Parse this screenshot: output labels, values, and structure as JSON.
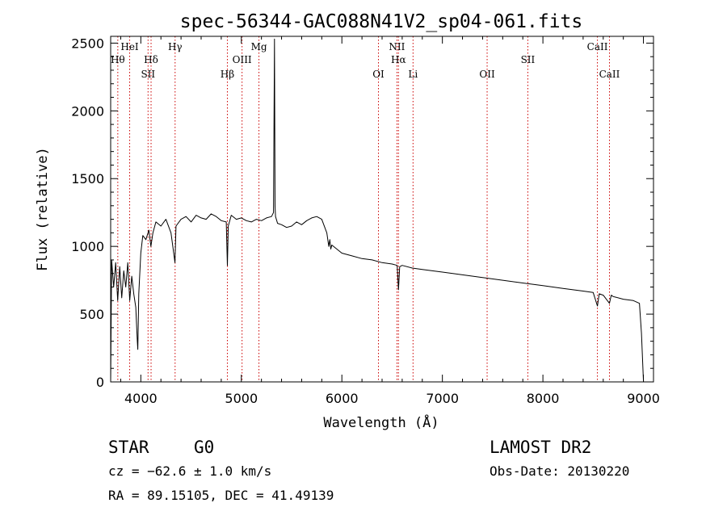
{
  "chart_data": {
    "type": "line",
    "title": "spec-56344-GAC088N41V2_sp04-061.fits",
    "xlabel": "Wavelength (Å)",
    "ylabel": "Flux (relative)",
    "xlim": [
      3700,
      9100
    ],
    "ylim": [
      0,
      2550
    ],
    "x_ticks": [
      4000,
      5000,
      6000,
      7000,
      8000,
      9000
    ],
    "x_tick_labels": [
      "4000",
      "5000",
      "6000",
      "7000",
      "8000",
      "9000"
    ],
    "y_ticks": [
      0,
      500,
      1000,
      1500,
      2000,
      2500
    ],
    "y_tick_labels": [
      "0",
      "500",
      "1000",
      "1500",
      "2000",
      "2500"
    ],
    "grid": false,
    "series": [
      {
        "x": [
          3700,
          3710,
          3730,
          3750,
          3770,
          3790,
          3810,
          3830,
          3850,
          3870,
          3890,
          3910,
          3930,
          3950,
          3965,
          3970,
          3980,
          4000,
          4020,
          4050,
          4080,
          4100,
          4120,
          4150,
          4200,
          4250,
          4300,
          4340,
          4350,
          4400,
          4450,
          4500,
          4550,
          4600,
          4650,
          4700,
          4750,
          4800,
          4850,
          4861,
          4870,
          4900,
          4950,
          5000,
          5050,
          5100,
          5150,
          5200,
          5250,
          5300,
          5320,
          5330,
          5335,
          5340,
          5360,
          5400,
          5450,
          5500,
          5550,
          5600,
          5650,
          5700,
          5750,
          5800,
          5850,
          5870,
          5880,
          5890,
          5900,
          5950,
          6000,
          6100,
          6200,
          6300,
          6400,
          6500,
          6550,
          6563,
          6575,
          6600,
          6700,
          6800,
          6900,
          7000,
          7200,
          7400,
          7600,
          7800,
          8000,
          8200,
          8400,
          8500,
          8542,
          8560,
          8600,
          8662,
          8680,
          8700,
          8800,
          8900,
          8960,
          8980,
          9000
        ],
        "y": [
          0,
          900,
          700,
          880,
          600,
          850,
          620,
          820,
          700,
          880,
          600,
          780,
          650,
          550,
          300,
          240,
          650,
          950,
          1080,
          1050,
          1120,
          1000,
          1100,
          1180,
          1150,
          1200,
          1100,
          880,
          1150,
          1200,
          1220,
          1180,
          1230,
          1210,
          1200,
          1240,
          1220,
          1190,
          1180,
          860,
          1150,
          1230,
          1200,
          1210,
          1190,
          1180,
          1200,
          1190,
          1210,
          1220,
          1250,
          2530,
          1300,
          1220,
          1170,
          1160,
          1140,
          1150,
          1180,
          1160,
          1190,
          1210,
          1220,
          1200,
          1100,
          1000,
          1050,
          980,
          1010,
          980,
          950,
          930,
          910,
          900,
          880,
          870,
          860,
          680,
          850,
          860,
          840,
          830,
          820,
          810,
          790,
          770,
          750,
          730,
          710,
          690,
          670,
          660,
          560,
          650,
          640,
          580,
          640,
          630,
          610,
          600,
          580,
          360,
          0
        ]
      }
    ],
    "line_labels": [
      {
        "x": 3771,
        "label": "Hθ",
        "row": 2
      },
      {
        "x": 3889,
        "label": "HeI",
        "row": 1
      },
      {
        "x": 4072,
        "label": "SII",
        "row": 3
      },
      {
        "x": 4102,
        "label": "Hδ",
        "row": 2
      },
      {
        "x": 4341,
        "label": "Hγ",
        "row": 1
      },
      {
        "x": 4861,
        "label": "Hβ",
        "row": 3
      },
      {
        "x": 5007,
        "label": "OIII",
        "row": 2
      },
      {
        "x": 5175,
        "label": "Mg",
        "row": 1
      },
      {
        "x": 6364,
        "label": "OI",
        "row": 3
      },
      {
        "x": 6548,
        "label": "NII",
        "row": 1
      },
      {
        "x": 6563,
        "label": "Hα",
        "row": 2
      },
      {
        "x": 6708,
        "label": "Li",
        "row": 3
      },
      {
        "x": 7445,
        "label": "OII",
        "row": 3
      },
      {
        "x": 7850,
        "label": "SII",
        "row": 2
      },
      {
        "x": 8542,
        "label": "CaII",
        "row": 1
      },
      {
        "x": 8662,
        "label": "CaII",
        "row": 3
      }
    ],
    "line_color": "#000000",
    "marker_color": "#cc0000"
  },
  "info": {
    "class_label": "STAR",
    "subclass_label": "G0",
    "survey": "LAMOST DR2",
    "redshift": "cz = −62.6 ± 1.0 km/s",
    "obs_date": "Obs-Date: 20130220",
    "coords": "RA =  89.15105, DEC =  41.49139"
  }
}
